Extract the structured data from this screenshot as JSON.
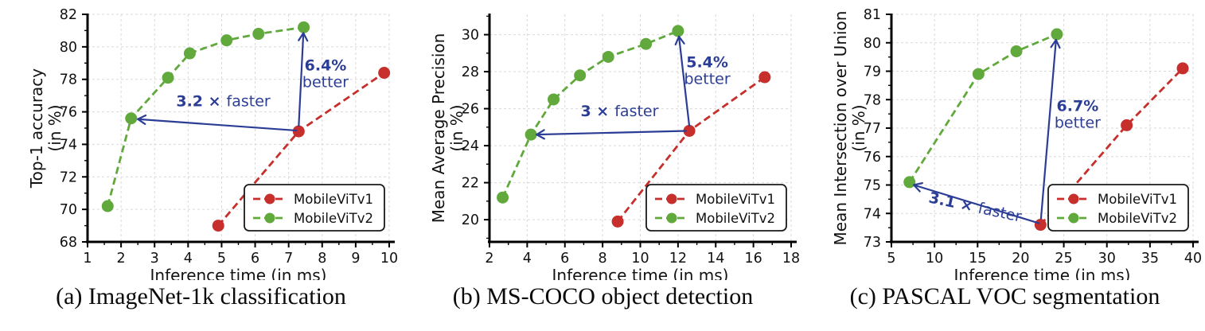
{
  "figure": {
    "name": "MobileViT v1 vs v2 speed-accuracy comparison",
    "colors": {
      "v1_red": "#c62f2c",
      "v2_green": "#61a93c",
      "annotation_blue": "#2c3d96",
      "grid": "#d9d9d9",
      "axis": "#000000",
      "text": "#111111",
      "legend_border": "#1a1a1a",
      "legend_bg": "#ffffff"
    }
  },
  "chart_data": [
    {
      "type": "line",
      "panel": "a",
      "caption": "(a) ImageNet-1k classification",
      "xlabel": "Inference time (in ms)",
      "ylabel_lines": [
        "Top-1 accuracy",
        "(in %)"
      ],
      "xlim": [
        1,
        10
      ],
      "xticks": [
        1,
        2,
        3,
        4,
        5,
        6,
        7,
        8,
        9,
        10
      ],
      "ylim": [
        68,
        82
      ],
      "yticks": [
        68,
        70,
        72,
        74,
        76,
        78,
        80,
        82
      ],
      "grid": true,
      "legend_position": "lower right",
      "series": [
        {
          "name": "MobileViTv1",
          "color_key": "v1_red",
          "dashed": true,
          "points": [
            [
              4.9,
              69.0
            ],
            [
              7.3,
              74.8
            ],
            [
              9.85,
              78.4
            ]
          ]
        },
        {
          "name": "MobileViTv2",
          "color_key": "v2_green",
          "dashed": true,
          "points": [
            [
              1.6,
              70.2
            ],
            [
              2.3,
              75.6
            ],
            [
              3.4,
              78.1
            ],
            [
              4.05,
              79.6
            ],
            [
              5.15,
              80.4
            ],
            [
              6.1,
              80.8
            ],
            [
              7.45,
              81.2
            ]
          ]
        }
      ],
      "annotations": [
        {
          "kind": "speedup",
          "bold": "3.2 ×",
          "text": "faster",
          "arrow_from": [
            7.25,
            74.85
          ],
          "arrow_to": [
            2.5,
            75.55
          ],
          "label_at": [
            5.05,
            76.35
          ],
          "rotation": 0
        },
        {
          "kind": "improvement",
          "bold": "6.4%",
          "text": "better",
          "arrow_from": [
            7.3,
            75.1
          ],
          "arrow_to": [
            7.44,
            80.85
          ],
          "label_at": [
            8.1,
            78.55
          ],
          "rotation": 0
        }
      ]
    },
    {
      "type": "line",
      "panel": "b",
      "caption": "(b) MS-COCO object detection",
      "xlabel": "Inference time (in ms)",
      "ylabel_lines": [
        "Mean Average Precision",
        "(in %)"
      ],
      "xlim": [
        2,
        18
      ],
      "xticks": [
        2,
        4,
        6,
        8,
        10,
        12,
        14,
        16,
        18
      ],
      "ylim": [
        18.8,
        31.1
      ],
      "yticks": [
        20,
        22,
        24,
        26,
        28,
        30
      ],
      "grid": true,
      "legend_position": "lower right",
      "series": [
        {
          "name": "MobileViTv1",
          "color_key": "v1_red",
          "dashed": true,
          "points": [
            [
              8.8,
              19.9
            ],
            [
              12.6,
              24.8
            ],
            [
              16.6,
              27.7
            ]
          ]
        },
        {
          "name": "MobileViTv2",
          "color_key": "v2_green",
          "dashed": true,
          "points": [
            [
              2.7,
              21.2
            ],
            [
              4.2,
              24.6
            ],
            [
              5.4,
              26.5
            ],
            [
              6.8,
              27.8
            ],
            [
              8.3,
              28.8
            ],
            [
              10.3,
              29.5
            ],
            [
              12.0,
              30.2
            ]
          ]
        }
      ],
      "annotations": [
        {
          "kind": "speedup",
          "bold": "3 ×",
          "text": "faster",
          "arrow_from": [
            12.45,
            24.8
          ],
          "arrow_to": [
            4.5,
            24.6
          ],
          "label_at": [
            8.9,
            25.6
          ],
          "rotation": 0
        },
        {
          "kind": "improvement",
          "bold": "5.4%",
          "text": "better",
          "arrow_from": [
            12.6,
            25.05
          ],
          "arrow_to": [
            12.05,
            29.9
          ],
          "label_at": [
            13.55,
            28.25
          ],
          "rotation": 0
        }
      ]
    },
    {
      "type": "line",
      "panel": "c",
      "caption": "(c) PASCAL VOC segmentation",
      "xlabel": "Inference time (in ms)",
      "ylabel_lines": [
        "Mean Intersection over Union",
        "(in %)"
      ],
      "xlim": [
        5,
        40
      ],
      "xticks": [
        5,
        10,
        15,
        20,
        25,
        30,
        35,
        40
      ],
      "ylim": [
        73,
        81
      ],
      "yticks": [
        73,
        74,
        75,
        76,
        77,
        78,
        79,
        80,
        81
      ],
      "grid": true,
      "legend_position": "lower right",
      "series": [
        {
          "name": "MobileViTv1",
          "color_key": "v1_red",
          "dashed": true,
          "points": [
            [
              22.3,
              73.6
            ],
            [
              32.3,
              77.1
            ],
            [
              38.8,
              79.1
            ]
          ]
        },
        {
          "name": "MobileViTv2",
          "color_key": "v2_green",
          "dashed": true,
          "points": [
            [
              7.1,
              75.1
            ],
            [
              15.1,
              78.9
            ],
            [
              19.5,
              79.7
            ],
            [
              24.2,
              80.3
            ]
          ]
        }
      ],
      "annotations": [
        {
          "kind": "speedup",
          "bold": "3.1 ×",
          "text": "faster",
          "arrow_from": [
            22.2,
            73.65
          ],
          "arrow_to": [
            7.6,
            75.0
          ],
          "label_at": [
            14.6,
            74.05
          ],
          "rotation": 12
        },
        {
          "kind": "improvement",
          "bold": "6.7%",
          "text": "better",
          "arrow_from": [
            22.35,
            73.8
          ],
          "arrow_to": [
            24.1,
            80.1
          ],
          "label_at": [
            26.6,
            77.6
          ],
          "rotation": 0
        }
      ]
    }
  ]
}
